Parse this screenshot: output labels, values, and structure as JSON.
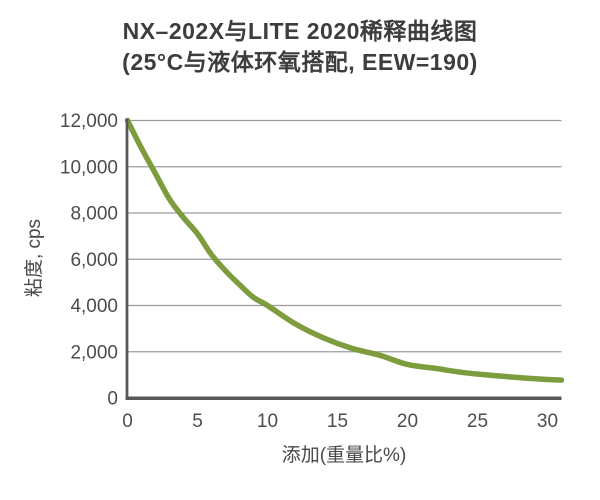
{
  "chart": {
    "title": "NX–202X与LITE 2020稀释曲线图",
    "subtitle": "(25°C与液体环氧搭配, EEW=190)",
    "xlabel": "添加(重量比%)",
    "ylabel": "粘度, cps"
  },
  "chart_data": {
    "type": "line",
    "title": "NX–202X与LITE 2020稀释曲线图",
    "subtitle": "(25°C与液体环氧搭配, EEW=190)",
    "xlabel": "添加(重量比%)",
    "ylabel": "粘度, cps",
    "xlim": [
      0,
      31
    ],
    "ylim": [
      0,
      12000
    ],
    "xticks": [
      0,
      5,
      10,
      15,
      20,
      25,
      30
    ],
    "xtick_labels": [
      "0",
      "5",
      "10",
      "15",
      "20",
      "25",
      "30"
    ],
    "yticks": [
      0,
      2000,
      4000,
      6000,
      8000,
      10000,
      12000
    ],
    "ytick_labels": [
      "0",
      "2,000",
      "4,000",
      "6,000",
      "8,000",
      "10,000",
      "12,000"
    ],
    "grid": "horizontal",
    "legend": "none",
    "line_color": "#7D9C3E",
    "series": [
      {
        "name": "NX-202X",
        "x": [
          0,
          1,
          2,
          3,
          4,
          5,
          6,
          7,
          8,
          9,
          10,
          12,
          14,
          16,
          18,
          20,
          22,
          24,
          26,
          28,
          30,
          31
        ],
        "y": [
          12000,
          10800,
          9700,
          8600,
          7800,
          7100,
          6200,
          5500,
          4900,
          4350,
          4000,
          3200,
          2600,
          2150,
          1850,
          1450,
          1280,
          1100,
          980,
          880,
          800,
          775
        ]
      }
    ]
  }
}
